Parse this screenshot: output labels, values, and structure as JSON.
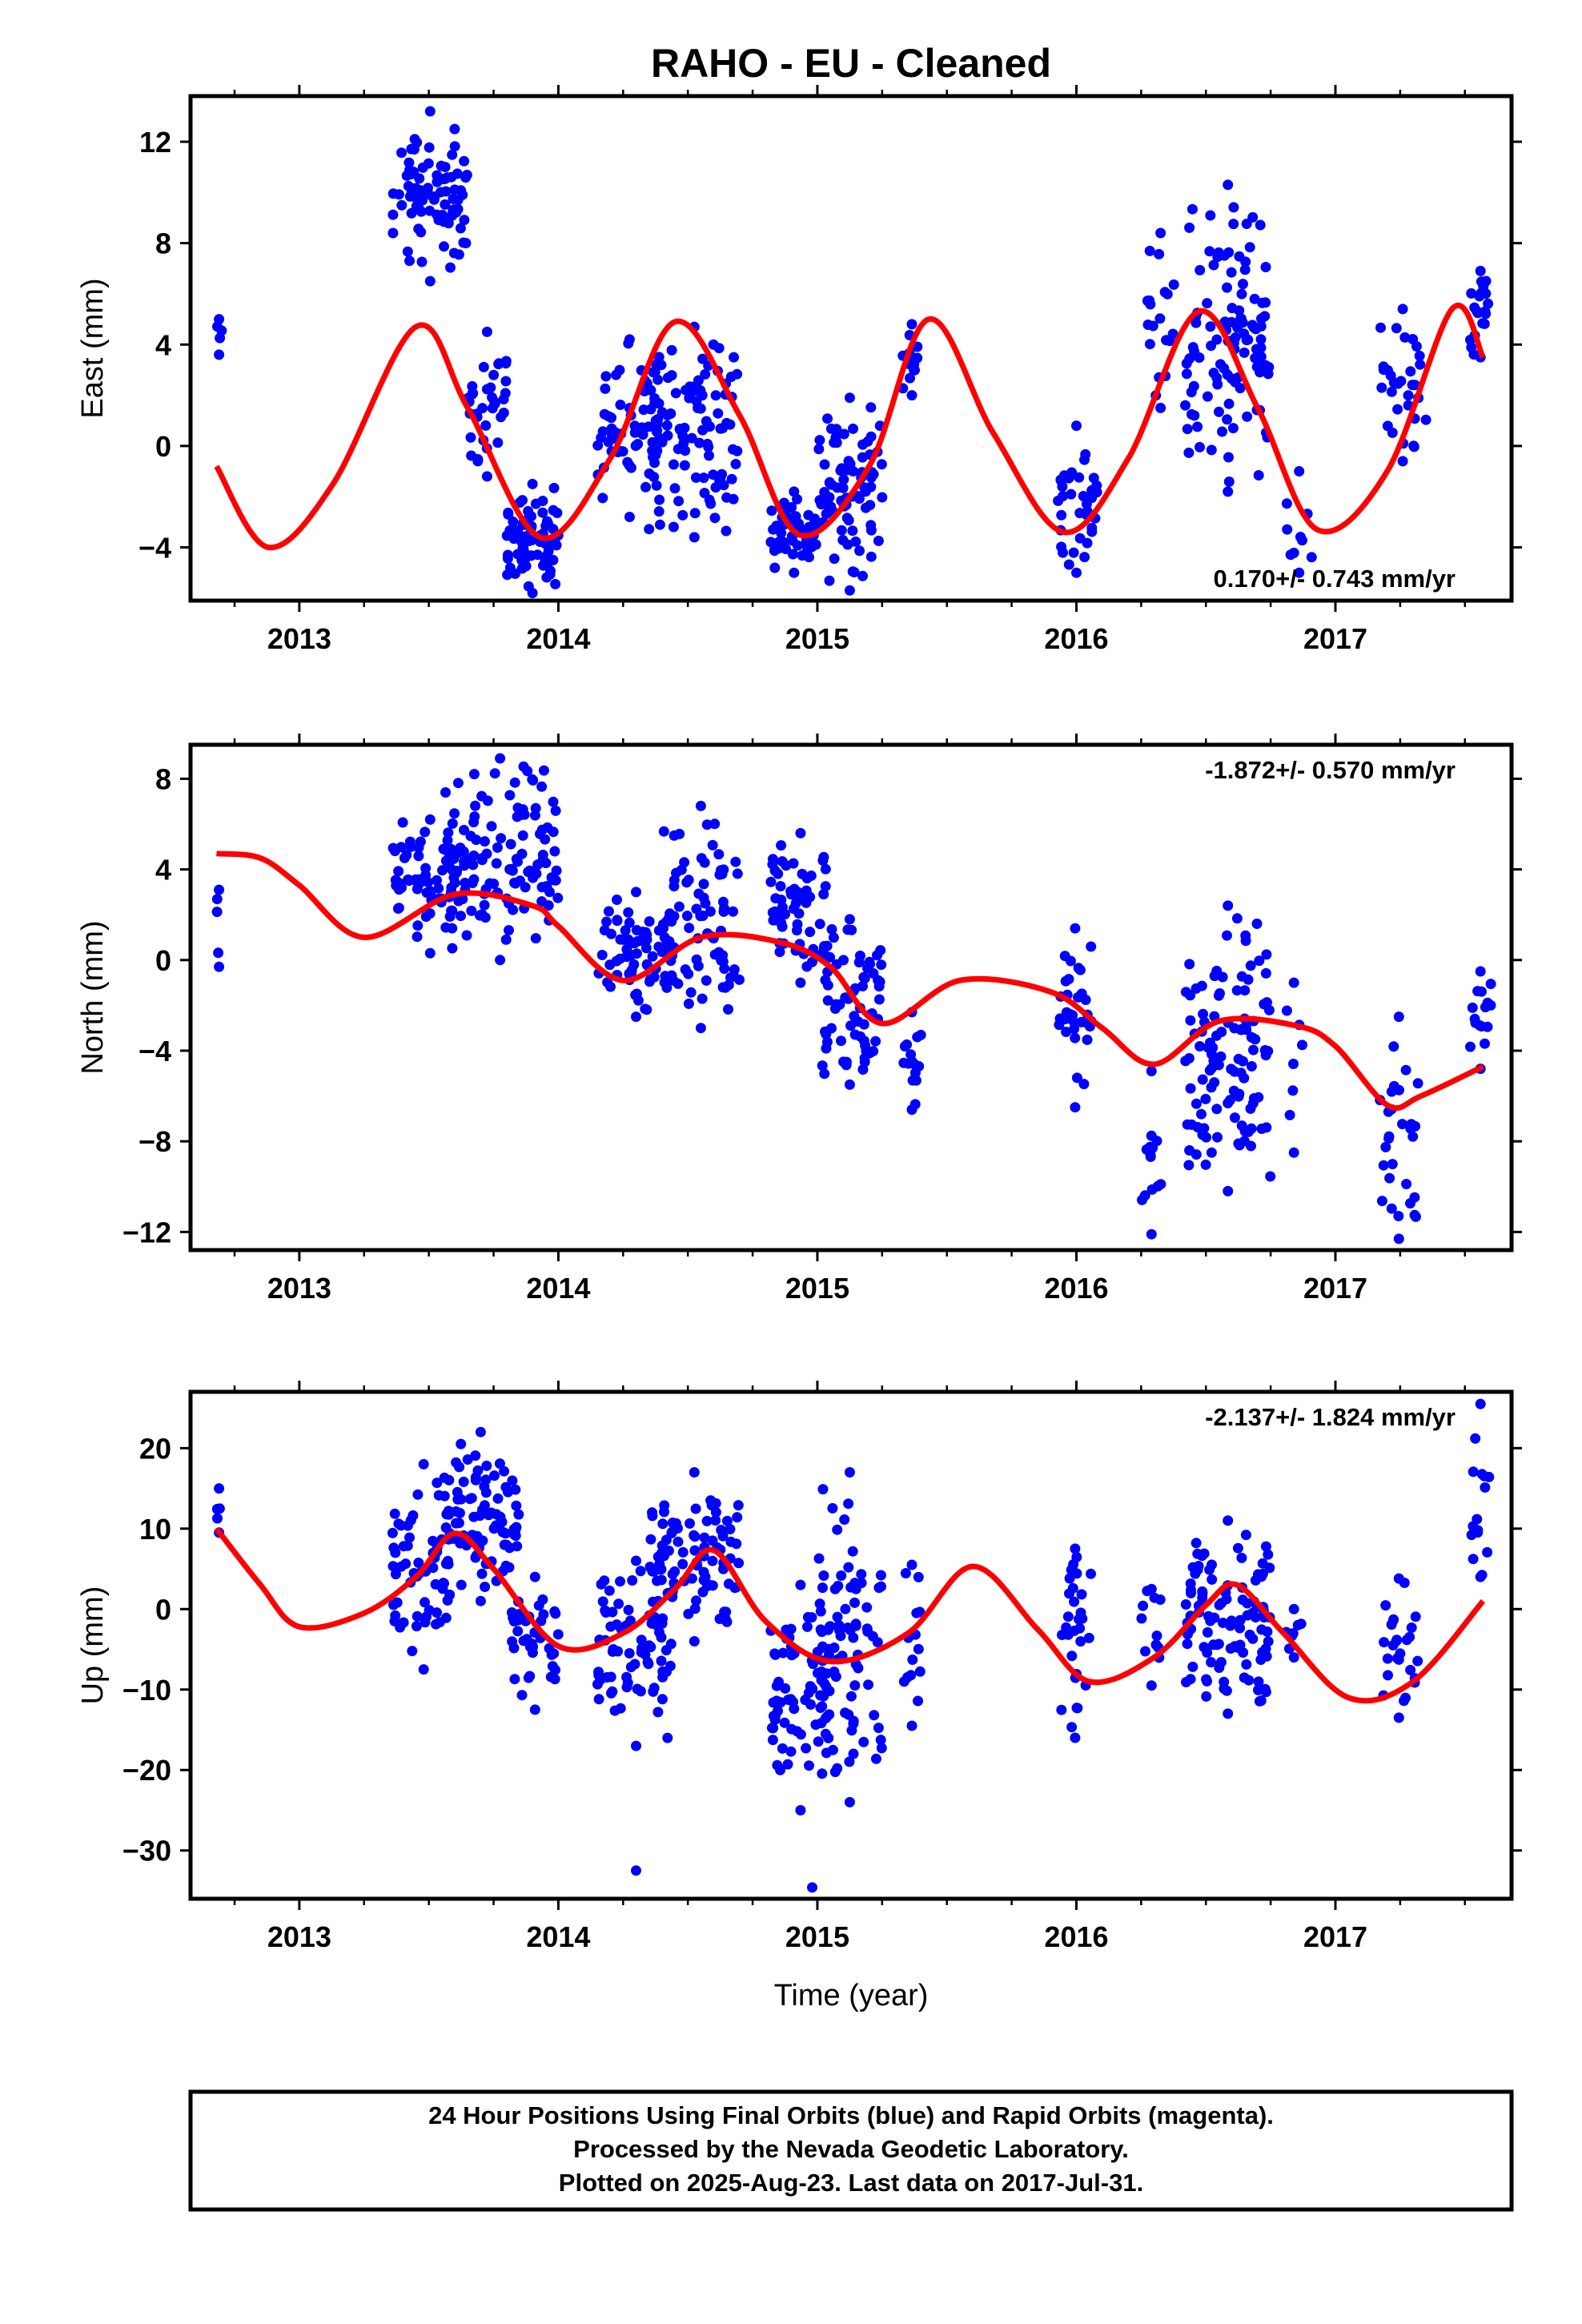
{
  "title": "RAHO  - EU - Cleaned",
  "x_axis_label": "Time (year)",
  "footer": {
    "line1": "24 Hour Positions Using Final Orbits (blue) and Rapid Orbits (magenta).",
    "line2": "Processed by the Nevada Geodetic Laboratory.",
    "line3": "Plotted on 2025-Aug-23. Last data on 2017-Jul-31."
  },
  "colors": {
    "final_orbits": "#0000ff",
    "rapid_orbits": "#ff00ff",
    "model_fit": "#ff0000",
    "frame": "#000000"
  },
  "chart_data": [
    {
      "type": "scatter",
      "component": "East",
      "ylabel": "East (mm)",
      "xlim": [
        2012.58,
        2017.68
      ],
      "ylim": [
        -6.1,
        13.8
      ],
      "yticks": [
        -4,
        0,
        4,
        8,
        12
      ],
      "yticklabels": [
        "−4",
        "0",
        "4",
        "8",
        "12"
      ],
      "xticks": [
        2013,
        2014,
        2015,
        2016,
        2017
      ],
      "xticklabels": [
        "2013",
        "2014",
        "2015",
        "2016",
        "2017"
      ],
      "rate_label": "0.170+/- 0.743 mm/yr",
      "rate_position": "bottom-right",
      "grid": false,
      "clusters": [
        {
          "x": [
            2012.68,
            2012.7
          ],
          "y": [
            3.6,
            5.0
          ],
          "n": 3
        },
        {
          "x": [
            2013.36,
            2013.65
          ],
          "y": [
            6.5,
            13.2
          ],
          "n": 85
        },
        {
          "x": [
            2013.65,
            2013.8
          ],
          "y": [
            -1.2,
            4.5
          ],
          "n": 35
        },
        {
          "x": [
            2013.8,
            2014.0
          ],
          "y": [
            -5.8,
            -1.5
          ],
          "n": 70
        },
        {
          "x": [
            2014.15,
            2014.4
          ],
          "y": [
            -2.8,
            4.2
          ],
          "n": 60
        },
        {
          "x": [
            2014.35,
            2014.7
          ],
          "y": [
            -3.6,
            4.7
          ],
          "n": 100
        },
        {
          "x": [
            2014.82,
            2015.0
          ],
          "y": [
            -5.0,
            -1.8
          ],
          "n": 55
        },
        {
          "x": [
            2015.0,
            2015.25
          ],
          "y": [
            -5.7,
            1.9
          ],
          "n": 80
        },
        {
          "x": [
            2015.33,
            2015.4
          ],
          "y": [
            2.0,
            4.8
          ],
          "n": 12
        },
        {
          "x": [
            2015.92,
            2016.08
          ],
          "y": [
            -5.0,
            0.8
          ],
          "n": 35
        },
        {
          "x": [
            2016.27,
            2016.38
          ],
          "y": [
            1.5,
            8.4
          ],
          "n": 18
        },
        {
          "x": [
            2016.42,
            2016.75
          ],
          "y": [
            -1.8,
            10.3
          ],
          "n": 110
        },
        {
          "x": [
            2016.8,
            2016.92
          ],
          "y": [
            -5.0,
            -1.0
          ],
          "n": 8
        },
        {
          "x": [
            2017.17,
            2017.35
          ],
          "y": [
            -0.6,
            5.4
          ],
          "n": 30
        },
        {
          "x": [
            2017.52,
            2017.6
          ],
          "y": [
            3.5,
            6.9
          ],
          "n": 20
        }
      ],
      "fit": {
        "x": [
          2012.68,
          2012.88,
          2013.13,
          2013.45,
          2013.65,
          2013.93,
          2014.2,
          2014.45,
          2014.7,
          2014.93,
          2015.2,
          2015.43,
          2015.68,
          2015.95,
          2016.2,
          2016.47,
          2016.7,
          2016.93,
          2017.2,
          2017.45,
          2017.57
        ],
        "y": [
          -0.8,
          -4.0,
          -1.5,
          4.7,
          1.5,
          -3.6,
          -0.5,
          4.9,
          1.2,
          -3.5,
          -0.8,
          5.0,
          0.5,
          -3.4,
          -0.5,
          5.3,
          1.5,
          -3.3,
          -1.0,
          5.4,
          3.5
        ]
      }
    },
    {
      "type": "scatter",
      "component": "North",
      "ylabel": "North (mm)",
      "xlim": [
        2012.58,
        2017.68
      ],
      "ylim": [
        -12.8,
        9.5
      ],
      "yticks": [
        -12,
        -8,
        -4,
        0,
        4,
        8
      ],
      "yticklabels": [
        "−12",
        "−8",
        "−4",
        "0",
        "4",
        "8"
      ],
      "xticks": [
        2013,
        2014,
        2015,
        2016,
        2017
      ],
      "xticklabels": [
        "2013",
        "2014",
        "2015",
        "2016",
        "2017"
      ],
      "rate_label": "-1.872+/- 0.570 mm/yr",
      "rate_position": "top-right",
      "grid": false,
      "clusters": [
        {
          "x": [
            2012.68,
            2012.7
          ],
          "y": [
            -0.3,
            3.1
          ],
          "n": 3
        },
        {
          "x": [
            2013.36,
            2013.65
          ],
          "y": [
            0.3,
            6.2
          ],
          "n": 70
        },
        {
          "x": [
            2013.55,
            2014.0
          ],
          "y": [
            0.0,
            8.9
          ],
          "n": 110
        },
        {
          "x": [
            2014.15,
            2014.45
          ],
          "y": [
            -2.5,
            3.0
          ],
          "n": 70
        },
        {
          "x": [
            2014.4,
            2014.7
          ],
          "y": [
            -3.0,
            6.8
          ],
          "n": 75
        },
        {
          "x": [
            2014.82,
            2015.05
          ],
          "y": [
            -1.0,
            5.6
          ],
          "n": 60
        },
        {
          "x": [
            2015.0,
            2015.25
          ],
          "y": [
            -5.5,
            1.8
          ],
          "n": 70
        },
        {
          "x": [
            2015.33,
            2015.4
          ],
          "y": [
            -6.6,
            -2.3
          ],
          "n": 14
        },
        {
          "x": [
            2015.93,
            2016.06
          ],
          "y": [
            -6.5,
            1.4
          ],
          "n": 30
        },
        {
          "x": [
            2016.25,
            2016.33
          ],
          "y": [
            -12.1,
            -4.9
          ],
          "n": 12
        },
        {
          "x": [
            2016.42,
            2016.75
          ],
          "y": [
            -10.2,
            2.4
          ],
          "n": 110
        },
        {
          "x": [
            2016.8,
            2016.88
          ],
          "y": [
            -8.5,
            -1.0
          ],
          "n": 6
        },
        {
          "x": [
            2017.17,
            2017.32
          ],
          "y": [
            -12.3,
            -2.5
          ],
          "n": 28
        },
        {
          "x": [
            2017.52,
            2017.6
          ],
          "y": [
            -4.8,
            -0.5
          ],
          "n": 14
        }
      ],
      "fit": {
        "x": [
          2012.68,
          2012.85,
          2013.0,
          2013.25,
          2013.6,
          2013.9,
          2014.0,
          2014.25,
          2014.55,
          2014.85,
          2015.05,
          2015.25,
          2015.55,
          2015.9,
          2016.1,
          2016.3,
          2016.55,
          2016.85,
          2017.0,
          2017.2,
          2017.33,
          2017.57
        ],
        "y": [
          4.7,
          4.5,
          3.3,
          1.0,
          2.9,
          2.4,
          1.5,
          -0.9,
          1.0,
          0.8,
          -0.3,
          -2.8,
          -0.9,
          -1.4,
          -3.0,
          -4.6,
          -2.7,
          -2.9,
          -3.8,
          -6.4,
          -6.0,
          -4.7
        ]
      }
    },
    {
      "type": "scatter",
      "component": "Up",
      "ylabel": "Up (mm)",
      "xlim": [
        2012.58,
        2017.68
      ],
      "ylim": [
        -36.0,
        27.0
      ],
      "yticks": [
        -30,
        -20,
        -10,
        0,
        10,
        20
      ],
      "yticklabels": [
        "−30",
        "−20",
        "−10",
        "0",
        "10",
        "20"
      ],
      "xticks": [
        2013,
        2014,
        2015,
        2016,
        2017
      ],
      "xticklabels": [
        "2013",
        "2014",
        "2015",
        "2016",
        "2017"
      ],
      "rate_label": "-2.137+/- 1.824 mm/yr",
      "rate_position": "top-right",
      "grid": false,
      "clusters": [
        {
          "x": [
            2012.68,
            2012.7
          ],
          "y": [
            9.5,
            15.0
          ],
          "n": 3
        },
        {
          "x": [
            2013.36,
            2013.6
          ],
          "y": [
            -7.5,
            18.0
          ],
          "n": 60
        },
        {
          "x": [
            2013.55,
            2013.85
          ],
          "y": [
            1.0,
            22.0
          ],
          "n": 90
        },
        {
          "x": [
            2013.82,
            2014.0
          ],
          "y": [
            -12.5,
            4.0
          ],
          "n": 40
        },
        {
          "x": [
            2014.15,
            2014.45
          ],
          "y": [
            -17.0,
            6.0
          ],
          "n": 70
        },
        {
          "x": [
            2014.35,
            2014.7
          ],
          "y": [
            -4.0,
            17.0
          ],
          "n": 90
        },
        {
          "x": [
            2014.82,
            2015.05
          ],
          "y": [
            -25.0,
            3.0
          ],
          "n": 70
        },
        {
          "x": [
            2015.0,
            2015.25
          ],
          "y": [
            -24.0,
            17.0
          ],
          "n": 80
        },
        {
          "x": [
            2015.33,
            2015.4
          ],
          "y": [
            -14.5,
            5.5
          ],
          "n": 14
        },
        {
          "x": [
            2015.93,
            2016.06
          ],
          "y": [
            -16.0,
            7.5
          ],
          "n": 30
        },
        {
          "x": [
            2016.25,
            2016.33
          ],
          "y": [
            -9.5,
            2.5
          ],
          "n": 10
        },
        {
          "x": [
            2016.42,
            2016.75
          ],
          "y": [
            -13.0,
            11.0
          ],
          "n": 110
        },
        {
          "x": [
            2016.8,
            2016.88
          ],
          "y": [
            -6.0,
            0.0
          ],
          "n": 6
        },
        {
          "x": [
            2017.17,
            2017.32
          ],
          "y": [
            -13.5,
            3.8
          ],
          "n": 25
        },
        {
          "x": [
            2017.52,
            2017.6
          ],
          "y": [
            4.0,
            25.5
          ],
          "n": 14
        }
      ],
      "outliers": {
        "x": [
          2014.3,
          2014.98
        ],
        "y": [
          -32.5,
          -34.6
        ]
      },
      "fit": {
        "x": [
          2012.68,
          2012.85,
          2013.0,
          2013.25,
          2013.45,
          2013.6,
          2013.75,
          2014.0,
          2014.25,
          2014.45,
          2014.6,
          2014.8,
          2015.05,
          2015.35,
          2015.6,
          2015.85,
          2016.05,
          2016.3,
          2016.5,
          2016.62,
          2016.8,
          2017.05,
          2017.3,
          2017.57
        ],
        "y": [
          10.0,
          3.0,
          -2.2,
          -0.5,
          4.0,
          9.4,
          5.0,
          -4.6,
          -3.0,
          2.5,
          7.3,
          -1.5,
          -6.5,
          -3.0,
          5.3,
          -2.5,
          -9.0,
          -6.0,
          0.5,
          3.0,
          -3.0,
          -11.0,
          -9.0,
          1.0
        ]
      }
    }
  ]
}
